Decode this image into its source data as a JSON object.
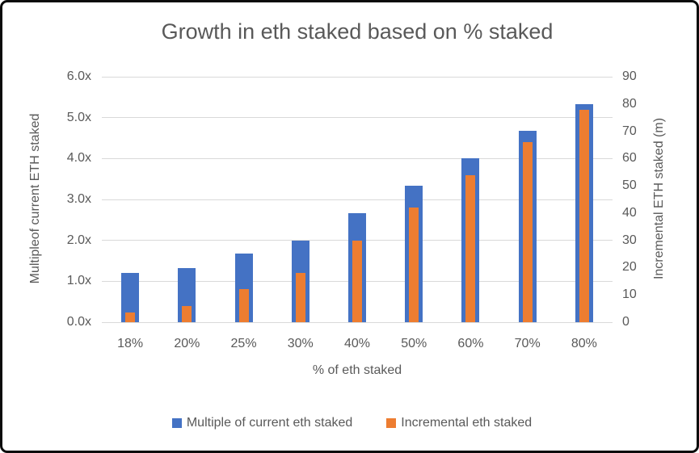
{
  "chart_data": {
    "type": "bar",
    "title": "Growth in eth staked based on % staked",
    "categories": [
      "18%",
      "20%",
      "25%",
      "30%",
      "40%",
      "50%",
      "60%",
      "70%",
      "80%"
    ],
    "series": [
      {
        "name": "Multiple of current eth staked",
        "axis": "left",
        "color": "#4472C4",
        "values": [
          1.2,
          1.33,
          1.67,
          2.0,
          2.67,
          3.33,
          4.0,
          4.67,
          5.33
        ]
      },
      {
        "name": "Incremental eth staked",
        "axis": "right",
        "color": "#ED7D31",
        "values": [
          3.6,
          6,
          12,
          18,
          30,
          42,
          54,
          66,
          78
        ]
      }
    ],
    "xlabel": "% of eth staked",
    "ylabel_left": "Multipleof current ETH staked",
    "ylabel_right": "Incremental ETH staked (m)",
    "left_axis": {
      "min": 0,
      "max": 6,
      "step": 1,
      "tick_labels": [
        "0.0x",
        "1.0x",
        "2.0x",
        "3.0x",
        "4.0x",
        "5.0x",
        "6.0x"
      ]
    },
    "right_axis": {
      "min": 0,
      "max": 90,
      "step": 10,
      "tick_labels": [
        "0",
        "10",
        "20",
        "30",
        "40",
        "50",
        "60",
        "70",
        "80",
        "90"
      ]
    },
    "legend_position": "bottom",
    "grid": true
  },
  "style": {
    "text_color": "#595959",
    "gridline_color": "#D9D9D9",
    "series_blue": "#4472C4",
    "series_orange": "#ED7D31",
    "frame_border": "#0b0b0b"
  }
}
